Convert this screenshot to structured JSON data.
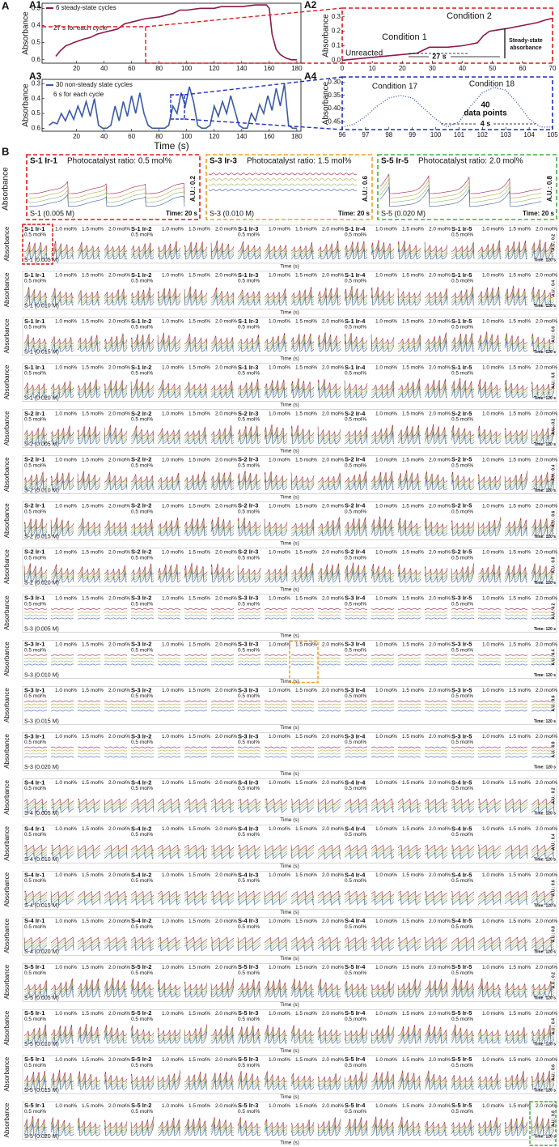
{
  "figure_labels": {
    "a": "A",
    "b": "B"
  },
  "chart_data": [
    {
      "type": "line",
      "label": "A1",
      "ylabel": "Absorbance",
      "legend": "6 steady-state cycles",
      "annotations": [
        "27 s for each cycle"
      ],
      "x": [
        5,
        8,
        12,
        18,
        25,
        30,
        35,
        40,
        45,
        50,
        55,
        60,
        70,
        80,
        85,
        90,
        95,
        100,
        110,
        120,
        125,
        130,
        140,
        150,
        155,
        158,
        160,
        162,
        165,
        168,
        172,
        176,
        180
      ],
      "series": [
        {
          "name": "6 steady-state cycles",
          "color": "#8b1a4a",
          "values": [
            0.58,
            0.55,
            0.52,
            0.5,
            0.48,
            0.47,
            0.45,
            0.44,
            0.43,
            0.42,
            0.39,
            0.38,
            0.36,
            0.35,
            0.34,
            0.33,
            0.31,
            0.31,
            0.3,
            0.3,
            0.29,
            0.29,
            0.29,
            0.28,
            0.28,
            0.28,
            0.3,
            0.45,
            0.54,
            0.57,
            0.59,
            0.6,
            0.6
          ]
        }
      ],
      "xlim": [
        -5,
        183
      ],
      "ylim": [
        0.62,
        0.27
      ],
      "xticks": [
        20,
        40,
        60,
        80,
        100,
        120,
        140,
        160,
        180
      ],
      "yticks": [
        0.3,
        0.4,
        0.5,
        0.6
      ]
    },
    {
      "type": "line",
      "label": "A2",
      "ylabel": "Absorbance",
      "annotations": [
        "Condition 2",
        "Condition 1",
        "Unreacted",
        "27 s",
        "Steady-state",
        "absorbance"
      ],
      "x": [
        0,
        5,
        10,
        15,
        20,
        25,
        27,
        29,
        32,
        35,
        40,
        45,
        47,
        49,
        52,
        55,
        60,
        65,
        68,
        70
      ],
      "series": [
        {
          "name": "Condition",
          "color": "#8b1a4a",
          "values": [
            0.0,
            0.01,
            0.02,
            0.03,
            0.04,
            0.05,
            0.07,
            0.09,
            0.09,
            0.09,
            0.1,
            0.12,
            0.17,
            0.2,
            0.21,
            0.22,
            0.24,
            0.26,
            0.28,
            0.29
          ]
        }
      ],
      "xlim": [
        0,
        70
      ],
      "ylim": [
        -0.02,
        0.36
      ],
      "xticks": [
        0,
        10,
        20,
        30,
        40,
        50,
        60,
        70
      ],
      "yticks": [
        {
          "value": 0,
          "label": "0.0"
        },
        0.1,
        0.2,
        0.3
      ]
    },
    {
      "type": "line",
      "label": "A3",
      "ylabel": "Absorbance",
      "xlabel": "Time (s)",
      "legend": "30 non-steady state cycles",
      "annotations": [
        "6 s for each cycle"
      ],
      "x": [
        0,
        3,
        6,
        9,
        12,
        15,
        18,
        21,
        24,
        27,
        30,
        33,
        36,
        39,
        42,
        45,
        48,
        51,
        54,
        57,
        60,
        63,
        66,
        69,
        72,
        75,
        78,
        81,
        84,
        87,
        90,
        93,
        96,
        99,
        102,
        105,
        108,
        111,
        114,
        117,
        120,
        123,
        126,
        129,
        132,
        135,
        138,
        141,
        144,
        147,
        150,
        153,
        156,
        159,
        162,
        165,
        168,
        171,
        174,
        177,
        180
      ],
      "series": [
        {
          "name": "30 non-steady state cycles",
          "color": "#3b5ba5",
          "values": [
            0.58,
            0.56,
            0.57,
            0.5,
            0.55,
            0.48,
            0.54,
            0.45,
            0.52,
            0.42,
            0.52,
            0.4,
            0.58,
            0.6,
            0.6,
            0.58,
            0.45,
            0.55,
            0.42,
            0.52,
            0.38,
            0.5,
            0.36,
            0.5,
            0.58,
            0.6,
            0.6,
            0.6,
            0.6,
            0.58,
            0.45,
            0.5,
            0.36,
            0.45,
            0.32,
            0.42,
            0.58,
            0.6,
            0.6,
            0.58,
            0.45,
            0.52,
            0.42,
            0.5,
            0.38,
            0.48,
            0.58,
            0.6,
            0.6,
            0.5,
            0.55,
            0.44,
            0.5,
            0.38,
            0.48,
            0.33,
            0.45,
            0.3,
            0.58,
            0.6,
            0.6
          ]
        }
      ],
      "xlim": [
        -5,
        183
      ],
      "ylim": [
        0.62,
        0.27
      ],
      "xticks": [
        20,
        40,
        60,
        80,
        100,
        120,
        140,
        160,
        180
      ],
      "yticks": [
        0.3,
        0.4,
        0.5,
        0.6
      ]
    },
    {
      "type": "line",
      "label": "A4",
      "ylabel": "Absorbance",
      "annotations": [
        "Condition 17",
        "Condition 18",
        "40",
        "data points",
        "4 s"
      ],
      "dotted": true,
      "x": [
        96,
        96.5,
        97,
        97.5,
        98,
        98.5,
        99,
        99.5,
        100,
        100.5,
        101,
        101.5,
        102,
        102.5,
        103,
        103.5,
        104,
        104.5,
        105
      ],
      "series": [
        {
          "name": "Condition",
          "color": "#3b5ba5",
          "values": [
            0.47,
            0.46,
            0.43,
            0.39,
            0.36,
            0.35,
            0.36,
            0.4,
            0.44,
            0.47,
            0.45,
            0.39,
            0.34,
            0.32,
            0.33,
            0.38,
            0.44,
            0.47,
            0.47
          ]
        }
      ],
      "xlim": [
        96,
        105
      ],
      "ylim": [
        0.48,
        0.28
      ],
      "xticks": [
        96,
        97,
        98,
        99,
        100,
        101,
        102,
        103,
        104,
        105
      ],
      "yticks": [
        {
          "value": 0.3,
          "label": "0.30"
        },
        0.35,
        {
          "value": 0.4,
          "label": "0.40"
        },
        0.45
      ]
    }
  ],
  "panel_b": [
    {
      "title": "S-1 Ir-1",
      "subtitle": "Photocatalyst ratio: 0.5 mol%",
      "concentration": "S-1 (0.005 M)",
      "scale": "A.U.: 0.2",
      "time": "Time: 20 s",
      "ylabel": "Absorbance"
    },
    {
      "title": "S-3 Ir-3",
      "subtitle": "Photocatalyst ratio: 1.5 mol%",
      "concentration": "S-3 (0.010 M)",
      "scale": "A.U.: 0.6",
      "time": "Time: 20 s",
      "ylabel": "Absorbance"
    },
    {
      "title": "S-5 Ir-5",
      "subtitle": "Photocatalyst ratio: 2.0 mol%",
      "concentration": "S-5 (0.020 M)",
      "scale": "A.U.: 0.8",
      "time": "Time: 20 s",
      "ylabel": "Absorbance"
    }
  ],
  "grid": {
    "ylabel": "Absorbance",
    "xlabel": "Time (s)",
    "time": "Time: 120 s",
    "ratios": [
      "0.5 mol%",
      "1.0 mol%",
      "1.5 mol%",
      "2.0 mol%"
    ],
    "rows": [
      {
        "groups": [
          "S-1 Ir-1",
          "S-1 Ir-2",
          "S-1 Ir-3",
          "S-1 Ir-4",
          "S-1 Ir-5"
        ],
        "concentration": "S-1 (0.005 M)",
        "scale": "A.U.: 0.2"
      },
      {
        "groups": [
          "S-1 Ir-1",
          "S-1 Ir-2",
          "S-1 Ir-3",
          "S-1 Ir-4",
          "S-1 Ir-5"
        ],
        "concentration": "S-1 (0.010 M)",
        "scale": "A.U.: 0.4"
      },
      {
        "groups": [
          "S-1 Ir-1",
          "S-1 Ir-2",
          "S-1 Ir-3",
          "S-1 Ir-4",
          "S-1 Ir-5"
        ],
        "concentration": "S-1 (0.015 M)",
        "scale": "A.U.: 0.6"
      },
      {
        "groups": [
          "S-1 Ir-1",
          "S-1 Ir-2",
          "S-1 Ir-3",
          "S-1 Ir-4",
          "S-1 Ir-5"
        ],
        "concentration": "S-1 (0.020 M)",
        "scale": "A.U.: 0.8"
      },
      {
        "groups": [
          "S-2 Ir-1",
          "S-2 Ir-2",
          "S-2 Ir-3",
          "S-2 Ir-4",
          "S-2 Ir-5"
        ],
        "concentration": "S-2 (0.005 M)",
        "scale": "A.U.: 0.2"
      },
      {
        "groups": [
          "S-2 Ir-1",
          "S-2 Ir-2",
          "S-2 Ir-3",
          "S-2 Ir-4",
          "S-2 Ir-5"
        ],
        "concentration": "S-2 (0.010 M)",
        "scale": "A.U.: 0.4"
      },
      {
        "groups": [
          "S-2 Ir-1",
          "S-2 Ir-2",
          "S-2 Ir-3",
          "S-2 Ir-4",
          "S-2 Ir-5"
        ],
        "concentration": "S-2 (0.015 M)",
        "scale": "A.U.: 0.6"
      },
      {
        "groups": [
          "S-2 Ir-1",
          "S-2 Ir-2",
          "S-2 Ir-3",
          "S-2 Ir-4",
          "S-2 Ir-5"
        ],
        "concentration": "S-2 (0.020 M)",
        "scale": "A.U.: 0.8"
      },
      {
        "groups": [
          "S-3 Ir-1",
          "S-3 Ir-2",
          "S-3 Ir-3",
          "S-3 Ir-4",
          "S-3 Ir-5"
        ],
        "concentration": "S-3 (0.005 M)",
        "scale": "A.U.: 0.2"
      },
      {
        "groups": [
          "S-3 Ir-1",
          "S-3 Ir-2",
          "S-3 Ir-3",
          "S-3 Ir-4",
          "S-3 Ir-5"
        ],
        "concentration": "S-3 (0.010 M)",
        "scale": "A.U.: 0.4"
      },
      {
        "groups": [
          "S-3 Ir-1",
          "S-3 Ir-2",
          "S-3 Ir-3",
          "S-3 Ir-4",
          "S-3 Ir-5"
        ],
        "concentration": "S-3 (0.015 M)",
        "scale": "A.U.: 0.6"
      },
      {
        "groups": [
          "S-3 Ir-1",
          "S-3 Ir-2",
          "S-3 Ir-3",
          "S-3 Ir-4",
          "S-3 Ir-5"
        ],
        "concentration": "S-3 (0.020 M)",
        "scale": "A.U.: 0.8"
      },
      {
        "groups": [
          "S-4 Ir-1",
          "S-4 Ir-2",
          "S-4 Ir-3",
          "S-4 Ir-4",
          "S-4 Ir-5"
        ],
        "concentration": "S-4 (0.005 M)",
        "scale": "A.U.: 0.2"
      },
      {
        "groups": [
          "S-4 Ir-1",
          "S-4 Ir-2",
          "S-4 Ir-3",
          "S-4 Ir-4",
          "S-4 Ir-5"
        ],
        "concentration": "S-4 (0.010 M)",
        "scale": "A.U.: 0.4"
      },
      {
        "groups": [
          "S-4 Ir-1",
          "S-4 Ir-2",
          "S-4 Ir-3",
          "S-4 Ir-4",
          "S-4 Ir-5"
        ],
        "concentration": "S-4 (0.015 M)",
        "scale": "A.U.: 0.6"
      },
      {
        "groups": [
          "S-4 Ir-1",
          "S-4 Ir-2",
          "S-4 Ir-3",
          "S-4 Ir-4",
          "S-4 Ir-5"
        ],
        "concentration": "S-4 (0.020 M)",
        "scale": "A.U.: 0.8"
      },
      {
        "groups": [
          "S-5 Ir-1",
          "S-5 Ir-2",
          "S-5 Ir-3",
          "S-5 Ir-4",
          "S-5 Ir-5"
        ],
        "concentration": "S-5 (0.005 M)",
        "scale": "A.U.: 0.2"
      },
      {
        "groups": [
          "S-5 Ir-1",
          "S-5 Ir-2",
          "S-5 Ir-3",
          "S-5 Ir-4",
          "S-5 Ir-5"
        ],
        "concentration": "S-5 (0.010 M)",
        "scale": "A.U.: 0.4"
      },
      {
        "groups": [
          "S-5 Ir-1",
          "S-5 Ir-2",
          "S-5 Ir-3",
          "S-5 Ir-4",
          "S-5 Ir-5"
        ],
        "concentration": "S-5 (0.015 M)",
        "scale": "A.U.: 0.6"
      },
      {
        "groups": [
          "S-5 Ir-1",
          "S-5 Ir-2",
          "S-5 Ir-3",
          "S-5 Ir-4",
          "S-5 Ir-5"
        ],
        "concentration": "S-5 (0.020 M)",
        "scale": "A.U.: 0.8"
      }
    ]
  }
}
